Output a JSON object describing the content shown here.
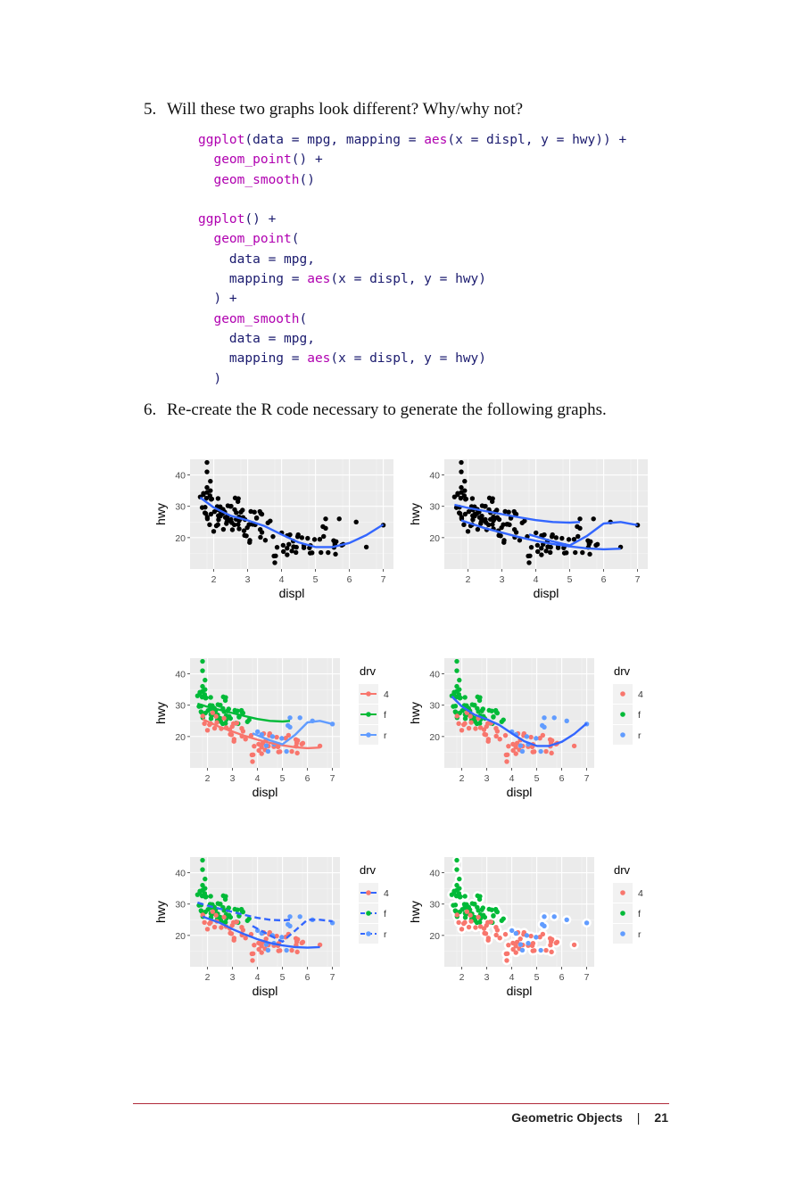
{
  "questions": [
    {
      "number": "5.",
      "text": "Will these two graphs look different? Why/why not?"
    },
    {
      "number": "6.",
      "text": "Re-create the R code necessary to generate the following graphs."
    }
  ],
  "code_lines": [
    [
      [
        "fn",
        "ggplot"
      ],
      [
        "t",
        "(data = mpg, mapping = "
      ],
      [
        "fn",
        "aes"
      ],
      [
        "t",
        "(x = displ, y = hwy)) +"
      ]
    ],
    [
      [
        "t",
        "  "
      ],
      [
        "fn",
        "geom_point"
      ],
      [
        "t",
        "() +"
      ]
    ],
    [
      [
        "t",
        "  "
      ],
      [
        "fn",
        "geom_smooth"
      ],
      [
        "t",
        "()"
      ]
    ],
    [],
    [
      [
        "fn",
        "ggplot"
      ],
      [
        "t",
        "() +"
      ]
    ],
    [
      [
        "t",
        "  "
      ],
      [
        "fn",
        "geom_point"
      ],
      [
        "t",
        "("
      ]
    ],
    [
      [
        "t",
        "    data = mpg,"
      ]
    ],
    [
      [
        "t",
        "    mapping = "
      ],
      [
        "fn",
        "aes"
      ],
      [
        "t",
        "(x = displ, y = hwy)"
      ]
    ],
    [
      [
        "t",
        "  ) +"
      ]
    ],
    [
      [
        "t",
        "  "
      ],
      [
        "fn",
        "geom_smooth"
      ],
      [
        "t",
        "("
      ]
    ],
    [
      [
        "t",
        "    data = mpg,"
      ]
    ],
    [
      [
        "t",
        "    mapping = "
      ],
      [
        "fn",
        "aes"
      ],
      [
        "t",
        "(x = displ, y = hwy)"
      ]
    ],
    [
      [
        "t",
        "  )"
      ]
    ]
  ],
  "colors": {
    "drv_4": "#f8766d",
    "drv_f": "#00ba38",
    "drv_r": "#619cff",
    "smooth": "#3366ff",
    "panel": "#ebebeb",
    "rule": "#b02a3a"
  },
  "chart_data": [
    {
      "type": "scatter",
      "id": "p1",
      "xlabel": "displ",
      "ylabel": "hwy",
      "xticks": [
        2,
        3,
        4,
        5,
        6,
        7
      ],
      "yticks": [
        20,
        30,
        40
      ],
      "xlim": [
        1.3,
        7.3
      ],
      "ylim": [
        10,
        45
      ],
      "smooth": [
        {
          "group": "all",
          "linetype": "solid",
          "x": [
            1.6,
            2.0,
            2.5,
            3.0,
            3.5,
            4.0,
            4.5,
            5.0,
            5.5,
            6.0,
            6.5,
            7.0
          ],
          "y": [
            32.8,
            29.6,
            27.0,
            25.5,
            23.7,
            21.0,
            18.5,
            17.0,
            17.0,
            18.3,
            20.8,
            24.2
          ]
        }
      ]
    },
    {
      "type": "scatter",
      "id": "p2",
      "xlabel": "displ",
      "ylabel": "hwy",
      "xticks": [
        2,
        3,
        4,
        5,
        6,
        7
      ],
      "yticks": [
        20,
        30,
        40
      ],
      "xlim": [
        1.3,
        7.3
      ],
      "ylim": [
        10,
        45
      ],
      "smooth": [
        {
          "group": "4",
          "linetype": "solid",
          "x": [
            1.8,
            2.5,
            3.0,
            3.5,
            4.0,
            4.5,
            5.0,
            5.5,
            6.0,
            6.5
          ],
          "y": [
            25.5,
            23.0,
            21.6,
            20.2,
            19.0,
            18.0,
            17.2,
            16.6,
            16.3,
            16.5
          ]
        },
        {
          "group": "f",
          "linetype": "solid",
          "x": [
            1.6,
            2.0,
            2.5,
            3.0,
            3.5,
            4.0,
            4.5,
            5.0,
            5.3
          ],
          "y": [
            30.5,
            29.5,
            28.5,
            27.5,
            26.5,
            25.6,
            25.0,
            24.8,
            25.0
          ]
        },
        {
          "group": "r",
          "linetype": "solid",
          "x": [
            3.8,
            4.5,
            5.0,
            5.5,
            6.0,
            6.5,
            7.0
          ],
          "y": [
            21.0,
            18.8,
            17.5,
            20.5,
            24.5,
            25.0,
            24.0
          ]
        }
      ]
    },
    {
      "type": "scatter",
      "id": "p3",
      "xlabel": "displ",
      "ylabel": "hwy",
      "xticks": [
        2,
        3,
        4,
        5,
        6,
        7
      ],
      "yticks": [
        20,
        30,
        40
      ],
      "xlim": [
        1.3,
        7.3
      ],
      "ylim": [
        10,
        45
      ],
      "legend": {
        "title": "drv",
        "entries": [
          "4",
          "f",
          "r"
        ],
        "position": "right"
      },
      "smooth": [
        {
          "group": "4",
          "linetype": "solid",
          "x": [
            1.8,
            2.5,
            3.0,
            3.5,
            4.0,
            4.5,
            5.0,
            5.5,
            6.0,
            6.5
          ],
          "y": [
            25.5,
            23.0,
            21.6,
            20.2,
            19.0,
            18.0,
            17.2,
            16.6,
            16.3,
            16.5
          ]
        },
        {
          "group": "f",
          "linetype": "solid",
          "x": [
            1.6,
            2.0,
            2.5,
            3.0,
            3.5,
            4.0,
            4.5,
            5.0,
            5.3
          ],
          "y": [
            30.5,
            29.5,
            28.5,
            27.5,
            26.5,
            25.6,
            25.0,
            24.8,
            25.0
          ]
        },
        {
          "group": "r",
          "linetype": "solid",
          "x": [
            3.8,
            4.5,
            5.0,
            5.5,
            6.0,
            6.5,
            7.0
          ],
          "y": [
            21.0,
            18.8,
            17.5,
            20.5,
            24.5,
            25.0,
            24.0
          ]
        }
      ]
    },
    {
      "type": "scatter",
      "id": "p4",
      "xlabel": "displ",
      "ylabel": "hwy",
      "xticks": [
        2,
        3,
        4,
        5,
        6,
        7
      ],
      "yticks": [
        20,
        30,
        40
      ],
      "xlim": [
        1.3,
        7.3
      ],
      "ylim": [
        10,
        45
      ],
      "legend": {
        "title": "drv",
        "entries": [
          "4",
          "f",
          "r"
        ],
        "position": "right"
      },
      "smooth": [
        {
          "group": "all",
          "linetype": "solid",
          "x": [
            1.6,
            2.0,
            2.5,
            3.0,
            3.5,
            4.0,
            4.5,
            5.0,
            5.5,
            6.0,
            6.5,
            7.0
          ],
          "y": [
            32.8,
            29.6,
            27.0,
            25.5,
            23.7,
            21.0,
            18.5,
            17.0,
            17.0,
            18.3,
            20.8,
            24.2
          ]
        }
      ]
    },
    {
      "type": "scatter",
      "id": "p5",
      "xlabel": "displ",
      "ylabel": "hwy",
      "xticks": [
        2,
        3,
        4,
        5,
        6,
        7
      ],
      "yticks": [
        20,
        30,
        40
      ],
      "xlim": [
        1.3,
        7.3
      ],
      "ylim": [
        10,
        45
      ],
      "legend": {
        "title": "drv",
        "entries": [
          "4",
          "f",
          "r"
        ],
        "position": "right"
      },
      "smooth": [
        {
          "group": "4",
          "linetype": "solid",
          "x": [
            1.8,
            2.5,
            3.0,
            3.5,
            4.0,
            4.5,
            5.0,
            5.5,
            6.0,
            6.5
          ],
          "y": [
            26.0,
            24.0,
            22.0,
            20.3,
            18.8,
            17.6,
            16.8,
            16.3,
            16.1,
            16.3
          ]
        },
        {
          "group": "f",
          "linetype": "dashed",
          "x": [
            1.6,
            2.0,
            2.5,
            3.0,
            3.5,
            4.0,
            4.5,
            5.0,
            5.3
          ],
          "y": [
            30.5,
            29.5,
            28.5,
            27.5,
            26.5,
            25.6,
            25.0,
            24.8,
            25.0
          ]
        },
        {
          "group": "r",
          "linetype": "dashed",
          "x": [
            3.8,
            4.5,
            5.0,
            5.5,
            6.0,
            6.5,
            7.0
          ],
          "y": [
            23.0,
            20.0,
            18.0,
            21.5,
            25.0,
            25.0,
            24.5
          ]
        }
      ]
    },
    {
      "type": "scatter",
      "id": "p6",
      "xlabel": "displ",
      "ylabel": "hwy",
      "xticks": [
        2,
        3,
        4,
        5,
        6,
        7
      ],
      "yticks": [
        20,
        30,
        40
      ],
      "xlim": [
        1.3,
        7.3
      ],
      "ylim": [
        10,
        45
      ],
      "legend": {
        "title": "drv",
        "entries": [
          "4",
          "f",
          "r"
        ],
        "position": "right"
      },
      "smooth": [],
      "point_outline": "white"
    }
  ],
  "footer": {
    "section": "Geometric Objects",
    "page": "21"
  }
}
